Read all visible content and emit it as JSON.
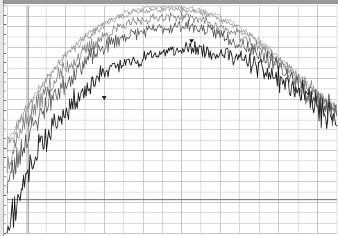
{
  "chart_data": {
    "type": "line",
    "title": "",
    "xlabel": "",
    "ylabel": "",
    "grid": true,
    "x_range": [
      0,
      100
    ],
    "y_range": [
      0,
      100
    ],
    "colors": {
      "background": "#ffffff",
      "grid": "#c6c6c6",
      "frame_top": "#9a9a9a",
      "left_edge": "#707070",
      "marker_line": "#6e6e6e",
      "reference_line": "#777777"
    },
    "vertical_marker_x": 6.4,
    "horizontal_reference_y": 15,
    "series": [
      {
        "color": "#262626",
        "stroke_width": 1.3,
        "jitter": 0.24,
        "seed": 11,
        "points": [
          [
            0,
            3
          ],
          [
            1.5,
            8
          ],
          [
            3,
            14
          ],
          [
            5,
            22
          ],
          [
            7,
            30
          ],
          [
            10,
            38
          ],
          [
            13,
            44
          ],
          [
            16,
            50
          ],
          [
            19,
            56
          ],
          [
            22,
            61
          ],
          [
            25,
            65
          ],
          [
            28,
            69
          ],
          [
            31,
            72
          ],
          [
            34,
            74
          ],
          [
            37,
            75
          ],
          [
            40,
            76
          ],
          [
            43,
            78
          ],
          [
            46,
            79
          ],
          [
            49,
            80
          ],
          [
            52,
            80
          ],
          [
            55,
            81
          ],
          [
            58,
            81
          ],
          [
            61,
            80
          ],
          [
            64,
            79
          ],
          [
            67,
            79
          ],
          [
            70,
            77
          ],
          [
            73,
            75
          ],
          [
            76,
            73
          ],
          [
            79,
            70
          ],
          [
            82,
            68
          ],
          [
            85,
            65
          ],
          [
            88,
            62
          ],
          [
            91,
            59
          ],
          [
            94,
            55
          ],
          [
            97,
            50
          ],
          [
            100,
            48
          ]
        ]
      },
      {
        "color": "#5a5a5a",
        "stroke_width": 1.1,
        "jitter": 0.2,
        "seed": 23,
        "points": [
          [
            0,
            22
          ],
          [
            2,
            28
          ],
          [
            4,
            36
          ],
          [
            7,
            44
          ],
          [
            10,
            52
          ],
          [
            13,
            58
          ],
          [
            16,
            63
          ],
          [
            19,
            68
          ],
          [
            22,
            73
          ],
          [
            25,
            77
          ],
          [
            28,
            80
          ],
          [
            31,
            83
          ],
          [
            34,
            85
          ],
          [
            37,
            87
          ],
          [
            40,
            88
          ],
          [
            43,
            89
          ],
          [
            46,
            90
          ],
          [
            49,
            90
          ],
          [
            52,
            91
          ],
          [
            55,
            91
          ],
          [
            58,
            90
          ],
          [
            61,
            89
          ],
          [
            64,
            88
          ],
          [
            67,
            86
          ],
          [
            70,
            84
          ],
          [
            73,
            82
          ],
          [
            76,
            79
          ],
          [
            79,
            76
          ],
          [
            82,
            73
          ],
          [
            85,
            70
          ],
          [
            88,
            66
          ],
          [
            91,
            62
          ],
          [
            94,
            58
          ],
          [
            97,
            55
          ],
          [
            100,
            52
          ]
        ]
      },
      {
        "color": "#7e7e7e",
        "stroke_width": 1,
        "jitter": 0.16,
        "seed": 37,
        "points": [
          [
            0,
            30
          ],
          [
            2,
            38
          ],
          [
            4,
            45
          ],
          [
            7,
            52
          ],
          [
            10,
            58
          ],
          [
            13,
            64
          ],
          [
            16,
            70
          ],
          [
            19,
            74
          ],
          [
            22,
            78
          ],
          [
            25,
            82
          ],
          [
            28,
            85
          ],
          [
            31,
            88
          ],
          [
            34,
            90
          ],
          [
            37,
            92
          ],
          [
            40,
            93
          ],
          [
            43,
            94
          ],
          [
            46,
            95
          ],
          [
            49,
            95
          ],
          [
            52,
            95
          ],
          [
            55,
            95
          ],
          [
            58,
            94
          ],
          [
            61,
            93
          ],
          [
            64,
            91
          ],
          [
            67,
            89
          ],
          [
            70,
            87
          ],
          [
            73,
            84
          ],
          [
            76,
            82
          ],
          [
            79,
            79
          ],
          [
            82,
            75
          ],
          [
            85,
            72
          ],
          [
            88,
            68
          ],
          [
            91,
            64
          ],
          [
            94,
            60
          ],
          [
            97,
            57
          ],
          [
            100,
            55
          ]
        ]
      },
      {
        "color": "#979797",
        "stroke_width": 1,
        "jitter": 0.1,
        "seed": 41,
        "points": [
          [
            0,
            38
          ],
          [
            3,
            46
          ],
          [
            6,
            54
          ],
          [
            9,
            61
          ],
          [
            12,
            67
          ],
          [
            15,
            73
          ],
          [
            18,
            78
          ],
          [
            21,
            82
          ],
          [
            24,
            86
          ],
          [
            27,
            89
          ],
          [
            30,
            92
          ],
          [
            33,
            94
          ],
          [
            36,
            96
          ],
          [
            39,
            97
          ],
          [
            42,
            98
          ],
          [
            45,
            98
          ],
          [
            48,
            98.5
          ],
          [
            51,
            98.5
          ],
          [
            54,
            98
          ],
          [
            57,
            97.5
          ],
          [
            60,
            96.5
          ],
          [
            63,
            95
          ],
          [
            66,
            93
          ],
          [
            69,
            91
          ],
          [
            72,
            88
          ],
          [
            75,
            85
          ],
          [
            78,
            82
          ],
          [
            81,
            78
          ],
          [
            84,
            74
          ],
          [
            87,
            70
          ],
          [
            90,
            66
          ],
          [
            93,
            62
          ],
          [
            96,
            58
          ],
          [
            100,
            54
          ]
        ]
      },
      {
        "color": "#a9a9a9",
        "stroke_width": 1,
        "jitter": 0.07,
        "seed": 53,
        "points": [
          [
            0,
            40
          ],
          [
            3,
            48
          ],
          [
            6,
            55
          ],
          [
            9,
            62
          ],
          [
            12,
            68
          ],
          [
            15,
            74
          ],
          [
            18,
            79
          ],
          [
            21,
            83
          ],
          [
            24,
            87
          ],
          [
            27,
            90
          ],
          [
            30,
            93
          ],
          [
            33,
            95
          ],
          [
            36,
            97
          ],
          [
            39,
            98
          ],
          [
            42,
            99
          ],
          [
            45,
            99.5
          ],
          [
            48,
            99.5
          ],
          [
            51,
            99.5
          ],
          [
            54,
            99
          ],
          [
            57,
            98.5
          ],
          [
            60,
            97.5
          ],
          [
            63,
            96
          ],
          [
            66,
            94
          ],
          [
            69,
            92
          ],
          [
            72,
            89
          ],
          [
            75,
            86
          ],
          [
            78,
            83
          ],
          [
            81,
            79
          ],
          [
            84,
            75
          ],
          [
            87,
            71
          ],
          [
            90,
            67
          ],
          [
            93,
            63
          ],
          [
            96,
            59
          ],
          [
            100,
            55
          ]
        ]
      }
    ],
    "markers": [
      {
        "x": 56,
        "y": 84,
        "shape": "triangle-down",
        "color": "#111111"
      },
      {
        "x": 29.5,
        "y": 59,
        "shape": "triangle-down",
        "color": "#222222"
      }
    ]
  }
}
